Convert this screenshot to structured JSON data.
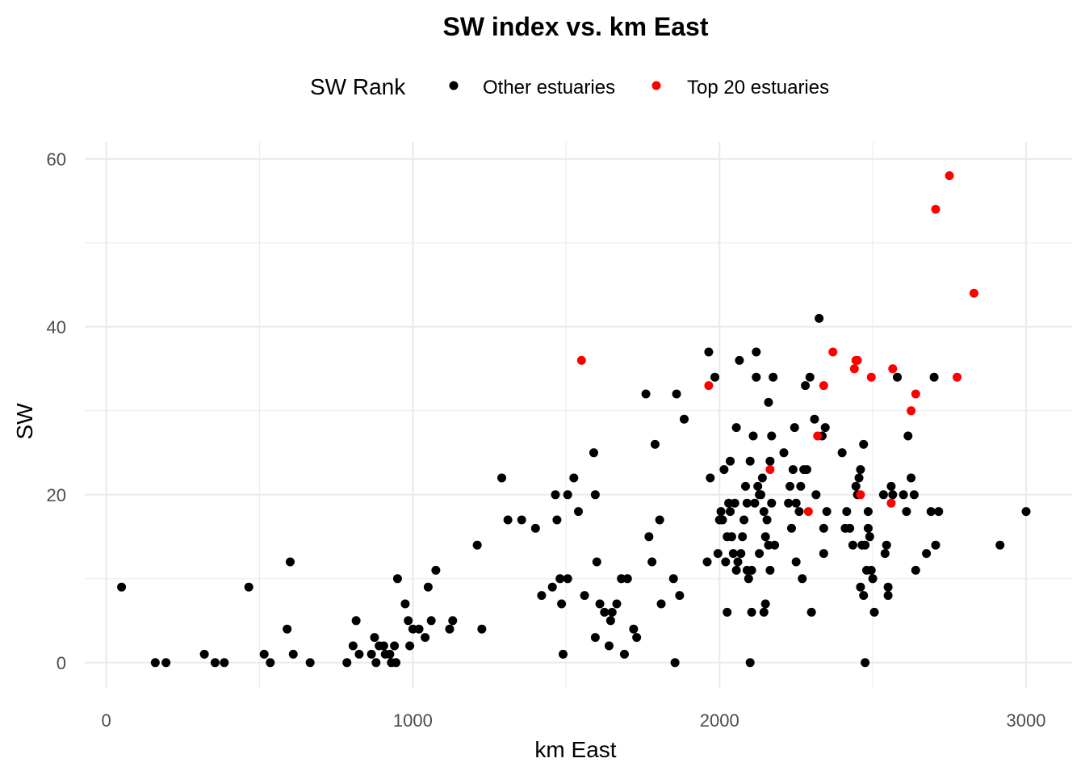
{
  "chart_data": {
    "type": "scatter",
    "title": "SW index vs. km East",
    "xlabel": "km East",
    "ylabel": "SW",
    "xlim": [
      -70,
      3150
    ],
    "ylim": [
      -3,
      62
    ],
    "x_ticks": [
      0,
      1000,
      2000,
      3000
    ],
    "y_ticks": [
      0,
      20,
      40,
      60
    ],
    "x_tick_labels": [
      "0",
      "1000",
      "2000",
      "3000"
    ],
    "y_tick_labels": [
      "0",
      "20",
      "40",
      "60"
    ],
    "grid": true,
    "legend": {
      "title": "SW Rank",
      "placement": "top",
      "entries": [
        "Other estuaries",
        "Top 20 estuaries"
      ]
    },
    "colors": {
      "Other estuaries": "#000000",
      "Top 20 estuaries": "#ff0000"
    },
    "series": [
      {
        "name": "Other estuaries",
        "points": [
          [
            50,
            9
          ],
          [
            160,
            0
          ],
          [
            195,
            0
          ],
          [
            320,
            1
          ],
          [
            355,
            0
          ],
          [
            385,
            0
          ],
          [
            465,
            9
          ],
          [
            515,
            1
          ],
          [
            535,
            0
          ],
          [
            590,
            4
          ],
          [
            600,
            12
          ],
          [
            610,
            1
          ],
          [
            665,
            0
          ],
          [
            785,
            0
          ],
          [
            805,
            2
          ],
          [
            815,
            5
          ],
          [
            825,
            1
          ],
          [
            865,
            1
          ],
          [
            875,
            3
          ],
          [
            880,
            0
          ],
          [
            890,
            2
          ],
          [
            905,
            2
          ],
          [
            910,
            1
          ],
          [
            925,
            1
          ],
          [
            930,
            0
          ],
          [
            940,
            2
          ],
          [
            945,
            0
          ],
          [
            950,
            10
          ],
          [
            975,
            7
          ],
          [
            985,
            5
          ],
          [
            990,
            2
          ],
          [
            1000,
            4
          ],
          [
            1020,
            4
          ],
          [
            1040,
            3
          ],
          [
            1050,
            9
          ],
          [
            1060,
            5
          ],
          [
            1075,
            11
          ],
          [
            1120,
            4
          ],
          [
            1130,
            5
          ],
          [
            1210,
            14
          ],
          [
            1225,
            4
          ],
          [
            1290,
            22
          ],
          [
            1310,
            17
          ],
          [
            1355,
            17
          ],
          [
            1400,
            16
          ],
          [
            1420,
            8
          ],
          [
            1455,
            9
          ],
          [
            1465,
            20
          ],
          [
            1470,
            17
          ],
          [
            1480,
            10
          ],
          [
            1485,
            7
          ],
          [
            1490,
            1
          ],
          [
            1505,
            10
          ],
          [
            1505,
            20
          ],
          [
            1525,
            22
          ],
          [
            1540,
            18
          ],
          [
            1560,
            8
          ],
          [
            1590,
            25
          ],
          [
            1595,
            3
          ],
          [
            1595,
            20
          ],
          [
            1600,
            12
          ],
          [
            1610,
            7
          ],
          [
            1625,
            6
          ],
          [
            1640,
            2
          ],
          [
            1645,
            5
          ],
          [
            1650,
            6
          ],
          [
            1665,
            7
          ],
          [
            1680,
            10
          ],
          [
            1690,
            1
          ],
          [
            1700,
            10
          ],
          [
            1720,
            4
          ],
          [
            1730,
            3
          ],
          [
            1760,
            32
          ],
          [
            1770,
            15
          ],
          [
            1780,
            12
          ],
          [
            1790,
            26
          ],
          [
            1805,
            17
          ],
          [
            1810,
            7
          ],
          [
            1850,
            10
          ],
          [
            1855,
            0
          ],
          [
            1860,
            32
          ],
          [
            1870,
            8
          ],
          [
            1885,
            29
          ],
          [
            1960,
            12
          ],
          [
            1965,
            37
          ],
          [
            1970,
            22
          ],
          [
            1985,
            34
          ],
          [
            1995,
            13
          ],
          [
            2000,
            17
          ],
          [
            2005,
            18
          ],
          [
            2010,
            17
          ],
          [
            2015,
            23
          ],
          [
            2020,
            12
          ],
          [
            2025,
            6
          ],
          [
            2025,
            15
          ],
          [
            2030,
            19
          ],
          [
            2035,
            18
          ],
          [
            2035,
            24
          ],
          [
            2040,
            15
          ],
          [
            2045,
            13
          ],
          [
            2050,
            19
          ],
          [
            2055,
            28
          ],
          [
            2055,
            11
          ],
          [
            2060,
            12
          ],
          [
            2065,
            36
          ],
          [
            2070,
            13
          ],
          [
            2075,
            15
          ],
          [
            2080,
            17
          ],
          [
            2085,
            21
          ],
          [
            2090,
            11
          ],
          [
            2090,
            19
          ],
          [
            2095,
            10
          ],
          [
            2100,
            0
          ],
          [
            2100,
            24
          ],
          [
            2105,
            6
          ],
          [
            2105,
            11
          ],
          [
            2110,
            27
          ],
          [
            2115,
            19
          ],
          [
            2120,
            34
          ],
          [
            2120,
            37
          ],
          [
            2125,
            21
          ],
          [
            2130,
            13
          ],
          [
            2130,
            20
          ],
          [
            2135,
            20
          ],
          [
            2140,
            22
          ],
          [
            2145,
            6
          ],
          [
            2145,
            18
          ],
          [
            2150,
            7
          ],
          [
            2150,
            15
          ],
          [
            2155,
            17
          ],
          [
            2160,
            14
          ],
          [
            2160,
            31
          ],
          [
            2165,
            11
          ],
          [
            2165,
            24
          ],
          [
            2170,
            19
          ],
          [
            2170,
            27
          ],
          [
            2175,
            34
          ],
          [
            2180,
            14
          ],
          [
            2210,
            25
          ],
          [
            2225,
            19
          ],
          [
            2230,
            21
          ],
          [
            2235,
            16
          ],
          [
            2240,
            23
          ],
          [
            2245,
            28
          ],
          [
            2250,
            12
          ],
          [
            2250,
            19
          ],
          [
            2260,
            18
          ],
          [
            2265,
            21
          ],
          [
            2270,
            10
          ],
          [
            2275,
            23
          ],
          [
            2280,
            33
          ],
          [
            2285,
            23
          ],
          [
            2295,
            34
          ],
          [
            2300,
            6
          ],
          [
            2310,
            29
          ],
          [
            2315,
            20
          ],
          [
            2325,
            41
          ],
          [
            2335,
            27
          ],
          [
            2340,
            13
          ],
          [
            2340,
            16
          ],
          [
            2345,
            28
          ],
          [
            2350,
            18
          ],
          [
            2400,
            25
          ],
          [
            2410,
            16
          ],
          [
            2415,
            18
          ],
          [
            2425,
            16
          ],
          [
            2435,
            14
          ],
          [
            2445,
            21
          ],
          [
            2450,
            20
          ],
          [
            2455,
            22
          ],
          [
            2460,
            23
          ],
          [
            2460,
            9
          ],
          [
            2465,
            14
          ],
          [
            2470,
            8
          ],
          [
            2470,
            26
          ],
          [
            2475,
            0
          ],
          [
            2475,
            14
          ],
          [
            2480,
            11
          ],
          [
            2485,
            18
          ],
          [
            2485,
            16
          ],
          [
            2490,
            15
          ],
          [
            2495,
            11
          ],
          [
            2500,
            10
          ],
          [
            2505,
            6
          ],
          [
            2535,
            20
          ],
          [
            2540,
            13
          ],
          [
            2545,
            14
          ],
          [
            2550,
            9
          ],
          [
            2550,
            8
          ],
          [
            2560,
            21
          ],
          [
            2565,
            20
          ],
          [
            2580,
            34
          ],
          [
            2600,
            20
          ],
          [
            2610,
            18
          ],
          [
            2615,
            27
          ],
          [
            2625,
            22
          ],
          [
            2635,
            20
          ],
          [
            2640,
            11
          ],
          [
            2675,
            13
          ],
          [
            2690,
            18
          ],
          [
            2700,
            34
          ],
          [
            2705,
            14
          ],
          [
            2715,
            18
          ],
          [
            2915,
            14
          ],
          [
            3000,
            18
          ]
        ]
      },
      {
        "name": "Top 20 estuaries",
        "points": [
          [
            1550,
            36
          ],
          [
            1965,
            33
          ],
          [
            2165,
            23
          ],
          [
            2290,
            18
          ],
          [
            2320,
            27
          ],
          [
            2340,
            33
          ],
          [
            2370,
            37
          ],
          [
            2440,
            35
          ],
          [
            2445,
            36
          ],
          [
            2450,
            36
          ],
          [
            2460,
            20
          ],
          [
            2495,
            34
          ],
          [
            2560,
            19
          ],
          [
            2565,
            35
          ],
          [
            2625,
            30
          ],
          [
            2640,
            32
          ],
          [
            2705,
            54
          ],
          [
            2750,
            58
          ],
          [
            2775,
            34
          ],
          [
            2830,
            44
          ]
        ]
      }
    ]
  }
}
